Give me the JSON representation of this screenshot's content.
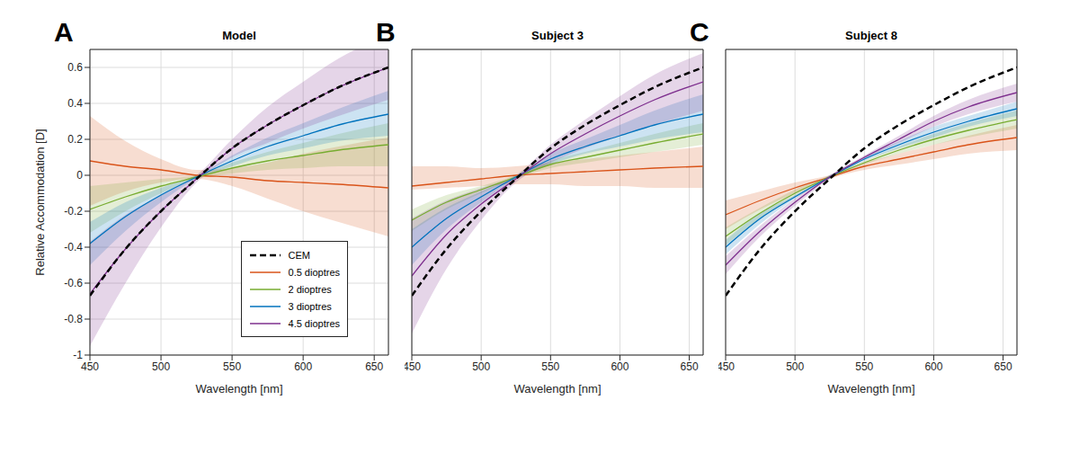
{
  "chart_data": [
    {
      "type": "line",
      "title": "Model",
      "annotations": [
        "A"
      ],
      "x_label": "Wavelength [nm]",
      "y_label": "Relative Accommodation [D]",
      "x": [
        450,
        475,
        500,
        525,
        550,
        575,
        600,
        625,
        660
      ],
      "xlim": [
        450,
        660
      ],
      "xticks": [
        450,
        500,
        550,
        600,
        650
      ],
      "ylim": [
        -1,
        0.7
      ],
      "yticks": [
        -1,
        -0.8,
        -0.6,
        -0.4,
        -0.2,
        0,
        0.2,
        0.4,
        0.6
      ],
      "grid": true,
      "legend": "lower right",
      "series": [
        {
          "name": "CEM",
          "color": "#000000",
          "line_style": "dashed",
          "values": [
            -0.67,
            -0.41,
            -0.2,
            -0.02,
            0.15,
            0.28,
            0.39,
            0.49,
            0.6
          ]
        },
        {
          "name": "0.5 dioptres",
          "color": "#d95319",
          "line_style": "solid",
          "values": [
            0.08,
            0.05,
            0.03,
            0.0,
            -0.01,
            -0.03,
            -0.04,
            -0.05,
            -0.07
          ],
          "ci_lower": [
            -0.17,
            -0.09,
            -0.04,
            -0.02,
            -0.06,
            -0.13,
            -0.2,
            -0.26,
            -0.34
          ],
          "ci_upper": [
            0.33,
            0.19,
            0.09,
            0.03,
            0.04,
            0.07,
            0.12,
            0.16,
            0.21
          ]
        },
        {
          "name": "2 dioptres",
          "color": "#77ac30",
          "line_style": "solid",
          "values": [
            -0.19,
            -0.12,
            -0.06,
            -0.01,
            0.04,
            0.08,
            0.11,
            0.14,
            0.17
          ],
          "ci_lower": [
            -0.32,
            -0.2,
            -0.1,
            -0.02,
            0.01,
            0.03,
            0.04,
            0.05,
            0.05
          ],
          "ci_upper": [
            -0.06,
            -0.04,
            -0.02,
            0.0,
            0.07,
            0.13,
            0.18,
            0.23,
            0.29
          ]
        },
        {
          "name": "3 dioptres",
          "color": "#0072bd",
          "line_style": "solid",
          "values": [
            -0.38,
            -0.23,
            -0.11,
            -0.01,
            0.08,
            0.16,
            0.22,
            0.28,
            0.34
          ],
          "ci_lower": [
            -0.5,
            -0.31,
            -0.15,
            -0.02,
            0.05,
            0.11,
            0.15,
            0.19,
            0.22
          ],
          "ci_upper": [
            -0.26,
            -0.15,
            -0.07,
            0.0,
            0.11,
            0.21,
            0.29,
            0.37,
            0.47
          ]
        },
        {
          "name": "4.5 dioptres",
          "color": "#7e2f8e",
          "line_style": "solid",
          "values": [
            -0.66,
            -0.41,
            -0.2,
            -0.02,
            0.15,
            0.28,
            0.39,
            0.49,
            0.6
          ],
          "ci_lower": [
            -0.95,
            -0.6,
            -0.29,
            -0.04,
            0.1,
            0.18,
            0.26,
            0.33,
            0.42
          ],
          "ci_upper": [
            -0.37,
            -0.22,
            -0.11,
            0.0,
            0.2,
            0.38,
            0.52,
            0.65,
            0.78
          ]
        }
      ]
    },
    {
      "type": "line",
      "title": "Subject 3",
      "annotations": [
        "B"
      ],
      "x_label": "Wavelength [nm]",
      "x": [
        450,
        475,
        500,
        525,
        550,
        575,
        600,
        625,
        660
      ],
      "xlim": [
        450,
        660
      ],
      "xticks": [
        450,
        500,
        550,
        600,
        650
      ],
      "ylim": [
        -1,
        0.7
      ],
      "yticks": [
        -1,
        -0.8,
        -0.6,
        -0.4,
        -0.2,
        0,
        0.2,
        0.4,
        0.6
      ],
      "grid": true,
      "tick_labels": "x",
      "series": [
        {
          "name": "CEM",
          "color": "#000000",
          "line_style": "dashed",
          "values": [
            -0.67,
            -0.41,
            -0.2,
            -0.02,
            0.15,
            0.28,
            0.39,
            0.49,
            0.6
          ]
        },
        {
          "name": "0.5 dioptres",
          "color": "#d95319",
          "line_style": "solid",
          "values": [
            -0.06,
            -0.04,
            -0.02,
            0.0,
            0.01,
            0.02,
            0.03,
            0.04,
            0.05
          ],
          "ci_lower": [
            -0.08,
            -0.07,
            -0.06,
            -0.05,
            -0.05,
            -0.06,
            -0.06,
            -0.07,
            -0.07
          ],
          "ci_upper": [
            0.05,
            0.05,
            0.04,
            0.05,
            0.07,
            0.09,
            0.11,
            0.13,
            0.16
          ]
        },
        {
          "name": "2 dioptres",
          "color": "#77ac30",
          "line_style": "solid",
          "values": [
            -0.25,
            -0.15,
            -0.08,
            -0.01,
            0.06,
            0.1,
            0.14,
            0.18,
            0.23
          ],
          "ci_lower": [
            -0.31,
            -0.19,
            -0.1,
            -0.02,
            0.04,
            0.07,
            0.1,
            0.13,
            0.17
          ],
          "ci_upper": [
            -0.19,
            -0.11,
            -0.06,
            0.0,
            0.08,
            0.13,
            0.18,
            0.23,
            0.29
          ]
        },
        {
          "name": "3 dioptres",
          "color": "#0072bd",
          "line_style": "solid",
          "values": [
            -0.4,
            -0.24,
            -0.12,
            -0.01,
            0.09,
            0.16,
            0.22,
            0.28,
            0.34
          ],
          "ci_lower": [
            -0.5,
            -0.3,
            -0.15,
            -0.02,
            0.06,
            0.12,
            0.16,
            0.2,
            0.24
          ],
          "ci_upper": [
            -0.3,
            -0.18,
            -0.09,
            0.0,
            0.12,
            0.2,
            0.28,
            0.36,
            0.45
          ]
        },
        {
          "name": "4.5 dioptres",
          "color": "#7e2f8e",
          "line_style": "solid",
          "values": [
            -0.56,
            -0.33,
            -0.16,
            -0.02,
            0.12,
            0.23,
            0.33,
            0.42,
            0.52
          ],
          "ci_lower": [
            -0.88,
            -0.52,
            -0.25,
            -0.04,
            0.07,
            0.15,
            0.22,
            0.28,
            0.36
          ],
          "ci_upper": [
            -0.24,
            -0.14,
            -0.07,
            0.0,
            0.17,
            0.31,
            0.44,
            0.56,
            0.68
          ]
        }
      ]
    },
    {
      "type": "line",
      "title": "Subject 8",
      "annotations": [
        "C"
      ],
      "x_label": "Wavelength [nm]",
      "x": [
        450,
        475,
        500,
        525,
        550,
        575,
        600,
        625,
        660
      ],
      "xlim": [
        450,
        660
      ],
      "xticks": [
        450,
        500,
        550,
        600,
        650
      ],
      "ylim": [
        -1,
        0.7
      ],
      "yticks": [
        -1,
        -0.8,
        -0.6,
        -0.4,
        -0.2,
        0,
        0.2,
        0.4,
        0.6
      ],
      "grid": true,
      "tick_labels": "x",
      "series": [
        {
          "name": "CEM",
          "color": "#000000",
          "line_style": "dashed",
          "values": [
            -0.67,
            -0.41,
            -0.2,
            -0.02,
            0.15,
            0.28,
            0.39,
            0.49,
            0.6
          ]
        },
        {
          "name": "0.5 dioptres",
          "color": "#d95319",
          "line_style": "solid",
          "values": [
            -0.22,
            -0.14,
            -0.07,
            -0.01,
            0.05,
            0.09,
            0.13,
            0.17,
            0.21
          ],
          "ci_lower": [
            -0.3,
            -0.19,
            -0.1,
            -0.02,
            0.03,
            0.06,
            0.09,
            0.12,
            0.14
          ],
          "ci_upper": [
            -0.14,
            -0.09,
            -0.04,
            0.0,
            0.07,
            0.12,
            0.17,
            0.22,
            0.28
          ]
        },
        {
          "name": "2 dioptres",
          "color": "#77ac30",
          "line_style": "solid",
          "values": [
            -0.34,
            -0.21,
            -0.1,
            -0.01,
            0.07,
            0.14,
            0.2,
            0.25,
            0.31
          ],
          "ci_lower": [
            -0.39,
            -0.24,
            -0.12,
            -0.02,
            0.06,
            0.12,
            0.17,
            0.21,
            0.26
          ],
          "ci_upper": [
            -0.29,
            -0.18,
            -0.08,
            0.0,
            0.08,
            0.16,
            0.23,
            0.29,
            0.36
          ]
        },
        {
          "name": "3 dioptres",
          "color": "#0072bd",
          "line_style": "solid",
          "values": [
            -0.4,
            -0.24,
            -0.12,
            -0.01,
            0.09,
            0.17,
            0.24,
            0.3,
            0.37
          ],
          "ci_lower": [
            -0.44,
            -0.27,
            -0.13,
            -0.02,
            0.08,
            0.15,
            0.21,
            0.27,
            0.33
          ],
          "ci_upper": [
            -0.36,
            -0.21,
            -0.11,
            0.0,
            0.1,
            0.19,
            0.27,
            0.33,
            0.41
          ]
        },
        {
          "name": "4.5 dioptres",
          "color": "#7e2f8e",
          "line_style": "solid",
          "values": [
            -0.5,
            -0.31,
            -0.15,
            -0.01,
            0.1,
            0.2,
            0.3,
            0.38,
            0.46
          ],
          "ci_lower": [
            -0.55,
            -0.34,
            -0.17,
            -0.02,
            0.09,
            0.18,
            0.27,
            0.34,
            0.41
          ],
          "ci_upper": [
            -0.45,
            -0.28,
            -0.13,
            0.0,
            0.11,
            0.22,
            0.33,
            0.42,
            0.51
          ]
        }
      ]
    }
  ]
}
